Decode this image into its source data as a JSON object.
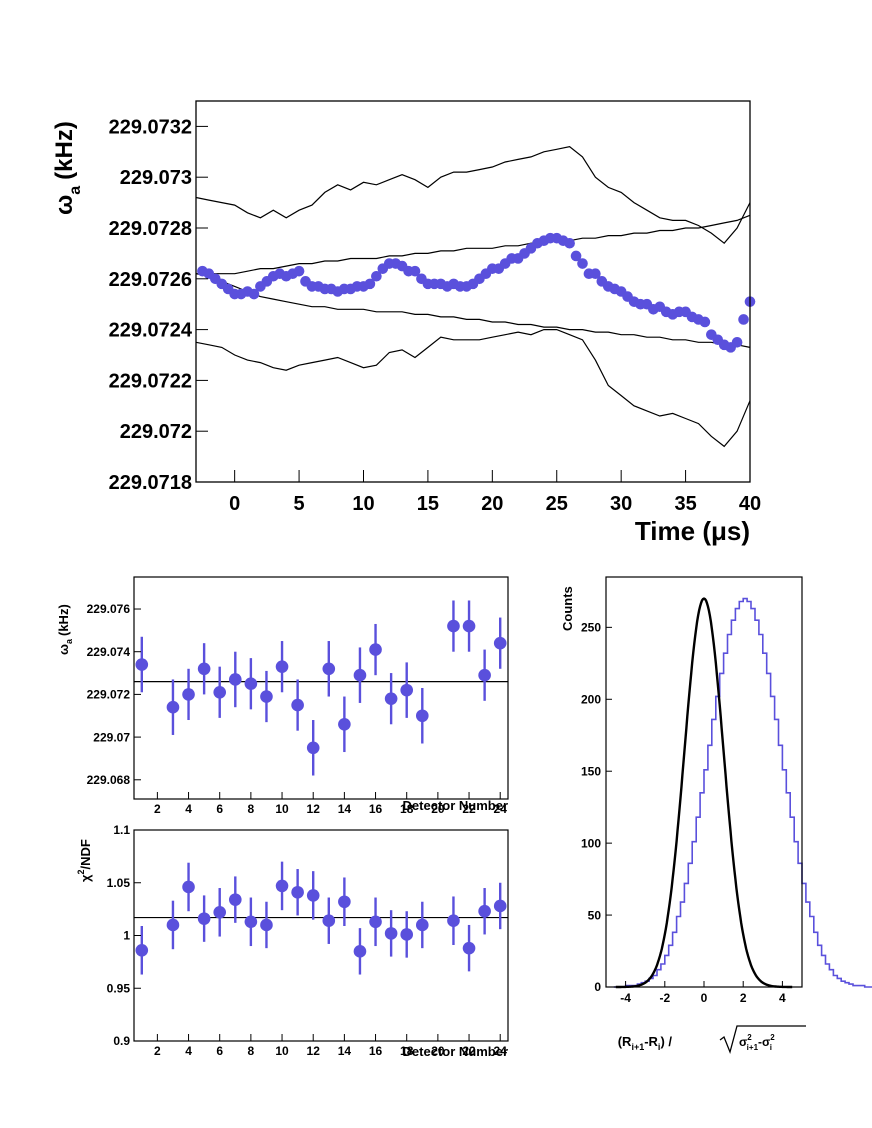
{
  "colors": {
    "marker": "#5a50dc",
    "axis": "#000000",
    "background": "#ffffff"
  },
  "chart_data": [
    {
      "id": "omega_vs_time",
      "type": "scatter",
      "title": "",
      "xlabel": "Time (μs)",
      "ylabel": "ωa (kHz)",
      "ylabel_main": "ω",
      "ylabel_sub": "a",
      "ylabel_unit": "(kHz)",
      "xlim": [
        -3,
        40
      ],
      "ylim": [
        229.0718,
        229.0733
      ],
      "xticks": [
        0,
        5,
        10,
        15,
        20,
        25,
        30,
        35,
        40
      ],
      "yticks": [
        229.0718,
        229.072,
        229.0722,
        229.0724,
        229.0726,
        229.0728,
        229.073,
        229.0732
      ],
      "ytick_labels": [
        "229.0718",
        "229.072",
        "229.0722",
        "229.0724",
        "229.0726",
        "229.0728",
        "229.073",
        "229.0732"
      ],
      "points_x": [
        -2.5,
        -2.0,
        -1.5,
        -1.0,
        -0.5,
        0.0,
        0.5,
        1.0,
        1.5,
        2.0,
        2.5,
        3.0,
        3.5,
        4.0,
        4.5,
        5.0,
        5.5,
        6.0,
        6.5,
        7.0,
        7.5,
        8.0,
        8.5,
        9.0,
        9.5,
        10.0,
        10.5,
        11.0,
        11.5,
        12.0,
        12.5,
        13.0,
        13.5,
        14.0,
        14.5,
        15.0,
        15.5,
        16.0,
        16.5,
        17.0,
        17.5,
        18.0,
        18.5,
        19.0,
        19.5,
        20.0,
        20.5,
        21.0,
        21.5,
        22.0,
        22.5,
        23.0,
        23.5,
        24.0,
        24.5,
        25.0,
        25.5,
        26.0,
        26.5,
        27.0,
        27.5,
        28.0,
        28.5,
        29.0,
        29.5,
        30.0,
        30.5,
        31.0,
        31.5,
        32.0,
        32.5,
        33.0,
        33.5,
        34.0,
        34.5,
        35.0,
        35.5,
        36.0,
        36.5,
        37.0,
        37.5,
        38.0,
        38.5,
        39.0,
        39.5,
        40.0
      ],
      "points_y": [
        229.07263,
        229.07262,
        229.0726,
        229.07258,
        229.07256,
        229.07254,
        229.07254,
        229.07255,
        229.07254,
        229.07257,
        229.07259,
        229.07261,
        229.07262,
        229.07261,
        229.07262,
        229.07263,
        229.07259,
        229.07257,
        229.07257,
        229.07256,
        229.07256,
        229.07255,
        229.07256,
        229.07256,
        229.07257,
        229.07257,
        229.07258,
        229.07261,
        229.07264,
        229.07266,
        229.07266,
        229.07265,
        229.07263,
        229.07263,
        229.0726,
        229.07258,
        229.07258,
        229.07258,
        229.07257,
        229.07258,
        229.07257,
        229.07257,
        229.07258,
        229.0726,
        229.07262,
        229.07264,
        229.07264,
        229.07266,
        229.07268,
        229.07268,
        229.0727,
        229.07272,
        229.07274,
        229.07275,
        229.07276,
        229.07276,
        229.07275,
        229.07274,
        229.07269,
        229.07266,
        229.07262,
        229.07262,
        229.07259,
        229.07257,
        229.07256,
        229.07255,
        229.07253,
        229.07251,
        229.0725,
        229.0725,
        229.07248,
        229.07249,
        229.07247,
        229.07246,
        229.07247,
        229.07247,
        229.07245,
        229.07244,
        229.07243,
        229.07238,
        229.07236,
        229.07234,
        229.07233,
        229.07235,
        229.07244,
        229.07251
      ],
      "band_x": [
        -3,
        -2,
        -1,
        0,
        1,
        2,
        3,
        4,
        5,
        6,
        7,
        8,
        9,
        10,
        11,
        12,
        13,
        14,
        15,
        16,
        17,
        18,
        19,
        20,
        21,
        22,
        23,
        24,
        25,
        26,
        27,
        28,
        29,
        30,
        31,
        32,
        33,
        34,
        35,
        36,
        37,
        38,
        39,
        40
      ],
      "band_inner_upper": [
        229.07262,
        229.07262,
        229.07262,
        229.07262,
        229.07263,
        229.07264,
        229.07264,
        229.07265,
        229.07266,
        229.07266,
        229.07267,
        229.07267,
        229.07268,
        229.07268,
        229.07268,
        229.07269,
        229.07269,
        229.0727,
        229.0727,
        229.07271,
        229.07271,
        229.07272,
        229.07272,
        229.07272,
        229.07273,
        229.07273,
        229.07274,
        229.07274,
        229.07275,
        229.07275,
        229.07276,
        229.07276,
        229.07277,
        229.07277,
        229.07278,
        229.07278,
        229.07279,
        229.07279,
        229.0728,
        229.0728,
        229.07281,
        229.07282,
        229.07283,
        229.07285
      ],
      "band_inner_lower": [
        229.07262,
        229.07261,
        229.07259,
        229.07257,
        229.07255,
        229.07253,
        229.07252,
        229.07251,
        229.0725,
        229.07249,
        229.07249,
        229.07248,
        229.07248,
        229.07248,
        229.07247,
        229.07247,
        229.07247,
        229.07246,
        229.07246,
        229.07245,
        229.07245,
        229.07244,
        229.07244,
        229.07243,
        229.07243,
        229.07242,
        229.07242,
        229.07241,
        229.07241,
        229.0724,
        229.0724,
        229.07239,
        229.07239,
        229.07238,
        229.07238,
        229.07237,
        229.07237,
        229.07236,
        229.07236,
        229.07235,
        229.07235,
        229.07234,
        229.07234,
        229.07233
      ],
      "band_outer_upper": [
        229.07292,
        229.07291,
        229.0729,
        229.07289,
        229.07286,
        229.07284,
        229.07287,
        229.07284,
        229.07287,
        229.07289,
        229.07294,
        229.07297,
        229.07295,
        229.07298,
        229.07297,
        229.07299,
        229.07301,
        229.07299,
        229.07296,
        229.073,
        229.07302,
        229.07302,
        229.07303,
        229.07304,
        229.07306,
        229.07307,
        229.07308,
        229.0731,
        229.07311,
        229.07312,
        229.07308,
        229.073,
        229.07296,
        229.07294,
        229.0729,
        229.07287,
        229.07284,
        229.07283,
        229.07283,
        229.07281,
        229.07278,
        229.07274,
        229.0728,
        229.0729
      ],
      "band_outer_lower": [
        229.07235,
        229.07234,
        229.07233,
        229.0723,
        229.07228,
        229.07227,
        229.07225,
        229.07224,
        229.07226,
        229.07227,
        229.07228,
        229.07229,
        229.07227,
        229.07225,
        229.07226,
        229.07231,
        229.07232,
        229.07229,
        229.07233,
        229.07237,
        229.07236,
        229.07236,
        229.07236,
        229.07237,
        229.07238,
        229.07239,
        229.07238,
        229.0724,
        229.0724,
        229.07238,
        229.07236,
        229.07228,
        229.07218,
        229.07214,
        229.0721,
        229.07208,
        229.07206,
        229.07207,
        229.07205,
        229.07203,
        229.07198,
        229.07194,
        229.072,
        229.07212
      ]
    },
    {
      "id": "omega_vs_detector",
      "type": "scatter",
      "xlabel": "Detector Number",
      "ylabel": "ωa (kHz)",
      "ylabel_main": "ω",
      "ylabel_sub": "a",
      "ylabel_unit": "(kHz)",
      "xlim": [
        0.5,
        24.5
      ],
      "ylim": [
        229.0671,
        229.0775
      ],
      "xticks": [
        2,
        4,
        6,
        8,
        10,
        12,
        14,
        16,
        18,
        20,
        22,
        24
      ],
      "yticks": [
        229.068,
        229.07,
        229.072,
        229.074,
        229.076
      ],
      "ytick_labels": [
        "229.068",
        "229.07",
        "229.072",
        "229.074",
        "229.076"
      ],
      "mean_line": 229.0726,
      "x": [
        1,
        3,
        4,
        5,
        6,
        7,
        8,
        9,
        10,
        11,
        12,
        13,
        14,
        15,
        16,
        17,
        18,
        19,
        21,
        22,
        23,
        24
      ],
      "y": [
        229.0734,
        229.0714,
        229.072,
        229.0732,
        229.0721,
        229.0727,
        229.0725,
        229.0719,
        229.0733,
        229.0715,
        229.0695,
        229.0732,
        229.0706,
        229.0729,
        229.0741,
        229.0718,
        229.0722,
        229.071,
        229.0752,
        229.0752,
        229.0729,
        229.0744
      ],
      "err": [
        0.0013,
        0.0013,
        0.0012,
        0.0012,
        0.0012,
        0.0013,
        0.0012,
        0.0012,
        0.0012,
        0.0012,
        0.0013,
        0.0013,
        0.0013,
        0.0013,
        0.0012,
        0.0012,
        0.0013,
        0.0013,
        0.0012,
        0.0012,
        0.0012,
        0.0012
      ]
    },
    {
      "id": "chi2_vs_detector",
      "type": "scatter",
      "xlabel": "Detector Number",
      "ylabel": "χ2/NDF",
      "ylabel_main": "χ",
      "ylabel_sup": "2",
      "ylabel_unit": "/NDF",
      "xlim": [
        0.5,
        24.5
      ],
      "ylim": [
        0.9,
        1.1
      ],
      "xticks": [
        2,
        4,
        6,
        8,
        10,
        12,
        14,
        16,
        18,
        20,
        22,
        24
      ],
      "yticks": [
        0.9,
        0.95,
        1,
        1.05,
        1.1
      ],
      "ytick_labels": [
        "0.9",
        "0.95",
        "1",
        "1.05",
        "1.1"
      ],
      "mean_line": 1.017,
      "x": [
        1,
        3,
        4,
        5,
        6,
        7,
        8,
        9,
        10,
        11,
        12,
        13,
        14,
        15,
        16,
        17,
        18,
        19,
        21,
        22,
        23,
        24
      ],
      "y": [
        0.986,
        1.01,
        1.046,
        1.016,
        1.022,
        1.034,
        1.013,
        1.01,
        1.047,
        1.041,
        1.038,
        1.014,
        1.032,
        0.985,
        1.013,
        1.002,
        1.001,
        1.01,
        1.014,
        0.988,
        1.023,
        1.028
      ],
      "err": [
        0.023,
        0.023,
        0.023,
        0.022,
        0.023,
        0.022,
        0.023,
        0.022,
        0.023,
        0.022,
        0.023,
        0.022,
        0.023,
        0.022,
        0.023,
        0.022,
        0.022,
        0.022,
        0.023,
        0.022,
        0.022,
        0.022
      ]
    },
    {
      "id": "pull_histogram",
      "type": "bar",
      "xlabel": "(Ri+1-Ri) / √(σ²i+1-σ²i)",
      "xlabel_parts": [
        "(R",
        "i+1",
        "-R",
        "i",
        ") / ",
        "σ",
        "2",
        "i+1",
        "-σ",
        "2",
        "i"
      ],
      "ylabel": "Counts",
      "xlim": [
        -5,
        5
      ],
      "ylim": [
        0,
        285
      ],
      "xticks": [
        -4,
        -2,
        0,
        2,
        4
      ],
      "yticks": [
        0,
        50,
        100,
        150,
        200,
        250
      ],
      "bin_edges_start": -4.6,
      "bin_width": 0.2,
      "counts": [
        0,
        0,
        0,
        1,
        1,
        1,
        2,
        3,
        4,
        6,
        8,
        12,
        16,
        22,
        29,
        38,
        49,
        59,
        72,
        86,
        101,
        118,
        135,
        151,
        168,
        186,
        202,
        218,
        232,
        245,
        255,
        263,
        268,
        270,
        268,
        263,
        255,
        245,
        232,
        218,
        202,
        186,
        168,
        151,
        135,
        118,
        101,
        86,
        72,
        59,
        49,
        38,
        29,
        22,
        16,
        12,
        8,
        6,
        4,
        3,
        2,
        1,
        1,
        1,
        0,
        0,
        0
      ],
      "fit_amplitude": 270,
      "fit_mean": 0.0,
      "fit_sigma": 1.0
    }
  ]
}
